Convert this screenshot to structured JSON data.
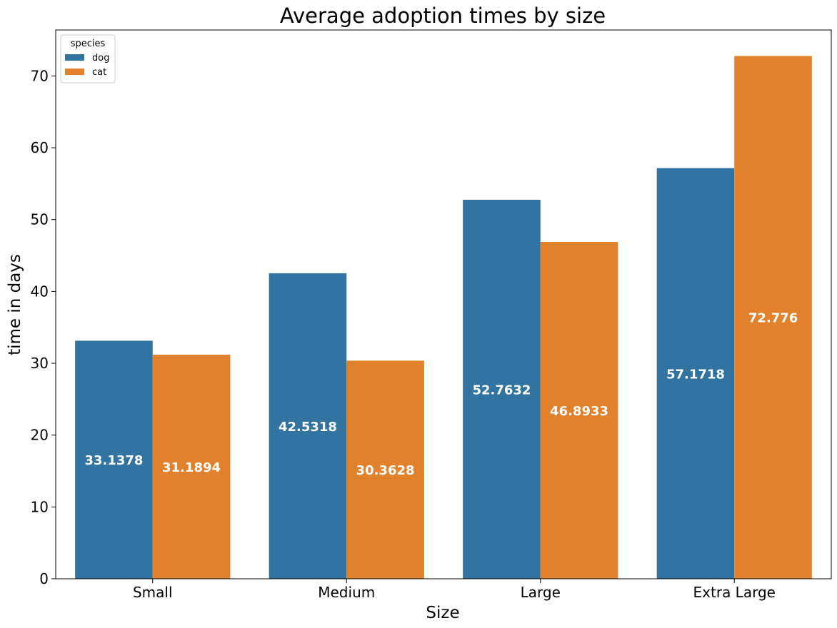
{
  "chart_data": {
    "type": "bar",
    "title": "Average adoption times by size",
    "xlabel": "Size",
    "ylabel": "time in days",
    "categories": [
      "Small",
      "Medium",
      "Large",
      "Extra Large"
    ],
    "series": [
      {
        "name": "dog",
        "color": "#3274a1",
        "values": [
          33.1378,
          42.5318,
          52.7632,
          57.1718
        ],
        "labels": [
          "33.1378",
          "42.5318",
          "52.7632",
          "57.1718"
        ]
      },
      {
        "name": "cat",
        "color": "#e1812c",
        "values": [
          31.1894,
          30.3628,
          46.8933,
          72.776
        ],
        "labels": [
          "31.1894",
          "30.3628",
          "46.8933",
          "72.776"
        ]
      }
    ],
    "ylim": [
      0,
      76.4
    ],
    "yticks": [
      0,
      10,
      20,
      30,
      40,
      50,
      60,
      70
    ],
    "legend": {
      "title": "species",
      "placement": "top-left"
    },
    "grid": false
  }
}
